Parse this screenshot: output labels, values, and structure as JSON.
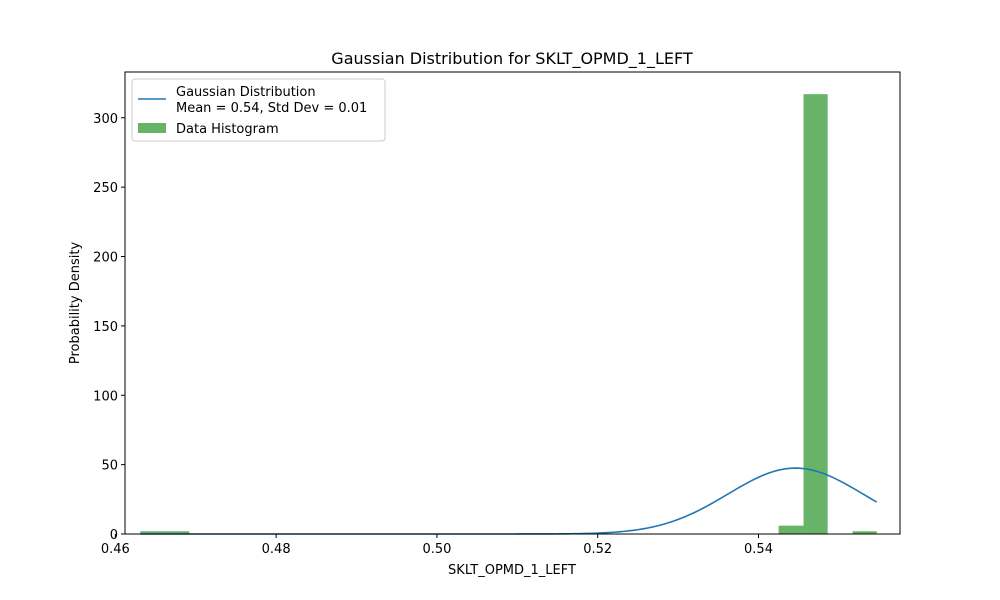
{
  "chart_data": {
    "type": "bar",
    "title": "Gaussian Distribution for SKLT_OPMD_1_LEFT",
    "xlabel": "SKLT_OPMD_1_LEFT",
    "ylabel": "Probability Density",
    "xlim": [
      0.4612,
      0.5576
    ],
    "ylim": [
      0,
      333
    ],
    "xticks": [
      0.46,
      0.48,
      0.5,
      0.52,
      0.54
    ],
    "xtick_labels": [
      "0.46",
      "0.48",
      "0.50",
      "0.52",
      "0.54"
    ],
    "yticks": [
      0,
      50,
      100,
      150,
      200,
      250,
      300
    ],
    "ytick_labels": [
      "0",
      "50",
      "100",
      "150",
      "200",
      "250",
      "300"
    ],
    "grid": false,
    "legend_position": "top-left",
    "histogram": {
      "name": "Data Histogram",
      "color": "#4ca64c",
      "bins": [
        {
          "x0": 0.4631,
          "x1": 0.4661,
          "value": 2
        },
        {
          "x0": 0.4661,
          "x1": 0.4692,
          "value": 2
        },
        {
          "x0": 0.5425,
          "x1": 0.5456,
          "value": 6
        },
        {
          "x0": 0.5456,
          "x1": 0.5486,
          "value": 317
        },
        {
          "x0": 0.5517,
          "x1": 0.5547,
          "value": 2
        }
      ]
    },
    "gaussian": {
      "name_line1": "Gaussian Distribution",
      "name_line2": "Mean = 0.54, Std Dev = 0.01",
      "color": "#1f77b4",
      "mean": 0.5446,
      "std": 0.0084,
      "x_range": [
        0.4631,
        0.5547
      ]
    }
  }
}
